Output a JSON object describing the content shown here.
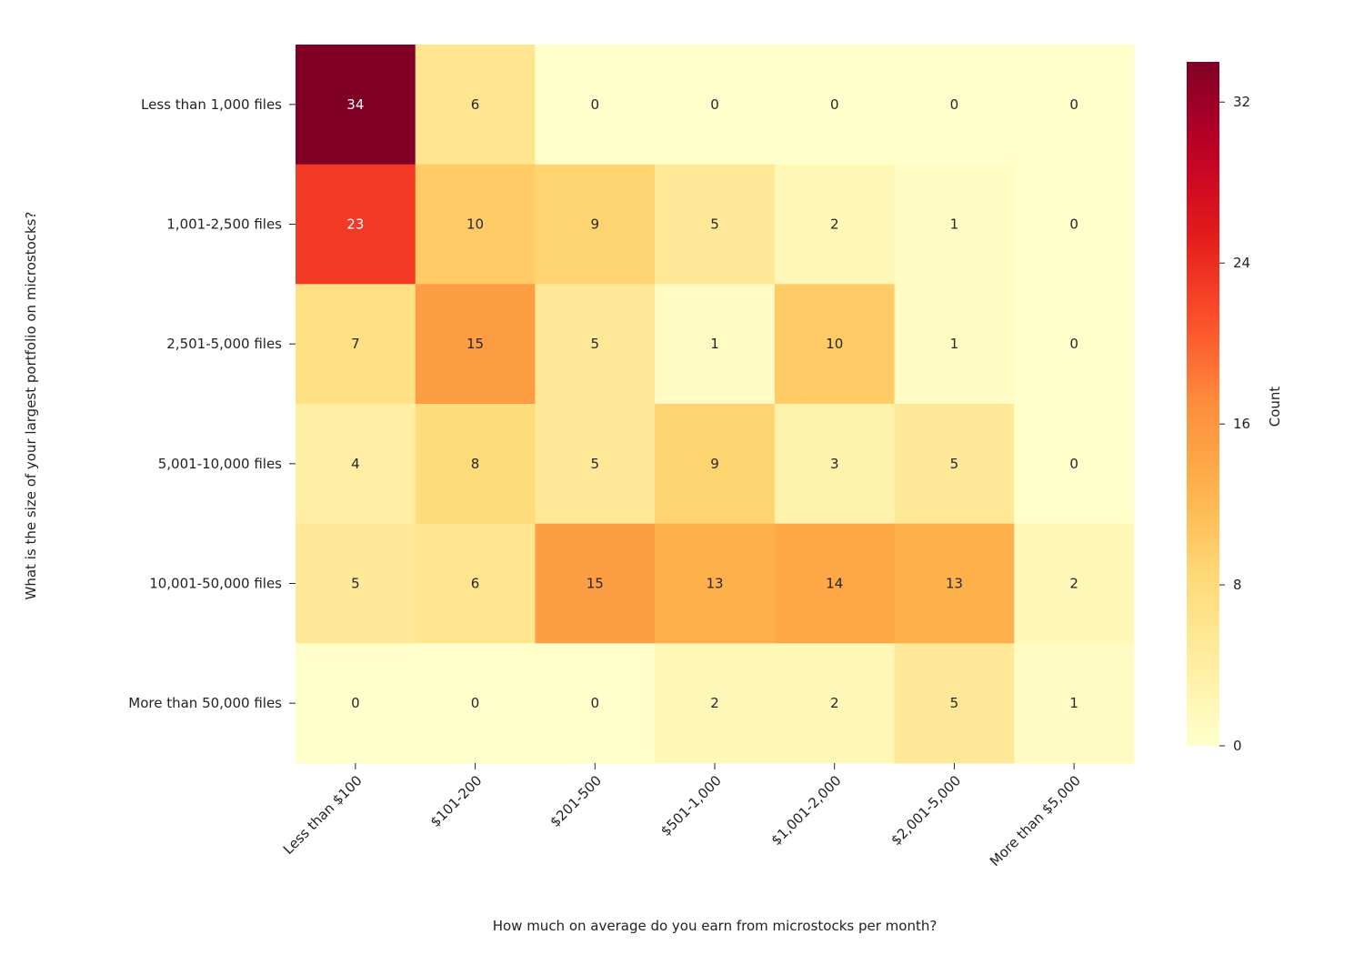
{
  "chart_data": {
    "type": "heatmap",
    "title": "",
    "xlabel": "How much on average do you earn from microstocks per month?",
    "ylabel": "What is the size of your largest portfolio on microstocks?",
    "x_categories": [
      "Less than $100",
      "$101-200",
      "$201-500",
      "$501-1,000",
      "$1,001-2,000",
      "$2,001-5,000",
      "More than $5,000"
    ],
    "y_categories": [
      "Less than 1,000 files",
      "1,001-2,500 files",
      "2,501-5,000 files",
      "5,001-10,000 files",
      "10,001-50,000 files",
      "More than 50,000 files"
    ],
    "values": [
      [
        34,
        6,
        0,
        0,
        0,
        0,
        0
      ],
      [
        23,
        10,
        9,
        5,
        2,
        1,
        0
      ],
      [
        7,
        15,
        5,
        1,
        10,
        1,
        0
      ],
      [
        4,
        8,
        5,
        9,
        3,
        5,
        0
      ],
      [
        5,
        6,
        15,
        13,
        14,
        13,
        2
      ],
      [
        0,
        0,
        0,
        2,
        2,
        5,
        1
      ]
    ],
    "colormap": "YlOrRd",
    "colorbar": {
      "label": "Count",
      "range": [
        0,
        34
      ],
      "ticks": [
        0,
        8,
        16,
        24,
        32
      ]
    },
    "annotated": true
  }
}
